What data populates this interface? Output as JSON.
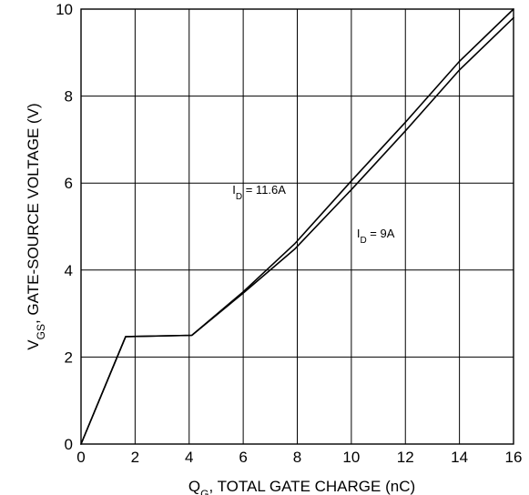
{
  "chart_data": {
    "type": "line",
    "xlabel": {
      "main": "Q",
      "sub": "G",
      "rest": ", TOTAL GATE CHARGE (nC)"
    },
    "ylabel": {
      "main": "V",
      "sub": "GS",
      "rest": ", GATE-SOURCE VOLTAGE (V)"
    },
    "xlim": [
      0,
      16
    ],
    "ylim": [
      0,
      10
    ],
    "xticks": [
      "0",
      "2",
      "4",
      "6",
      "8",
      "10",
      "12",
      "14",
      "16"
    ],
    "yticks": [
      "0",
      "2",
      "4",
      "6",
      "8",
      "10"
    ],
    "grid": true,
    "series": [
      {
        "name": "ID = 11.6A",
        "x": [
          0,
          1.65,
          4.1,
          6,
          7.9,
          10,
          12,
          14,
          16
        ],
        "y": [
          0,
          2.47,
          2.5,
          3.5,
          4.6,
          6.05,
          7.4,
          8.8,
          10.0
        ]
      },
      {
        "name": "ID = 9A",
        "x": [
          0,
          1.65,
          4.1,
          6,
          7.9,
          10,
          12,
          14,
          16
        ],
        "y": [
          0,
          2.47,
          2.5,
          3.47,
          4.48,
          5.85,
          7.2,
          8.6,
          9.8
        ]
      }
    ],
    "annotations": [
      {
        "main": "I",
        "sub": "D",
        "rest": " = 11.6A",
        "series": 0
      },
      {
        "main": "I",
        "sub": "D",
        "rest": " = 9A",
        "series": 1
      }
    ]
  }
}
